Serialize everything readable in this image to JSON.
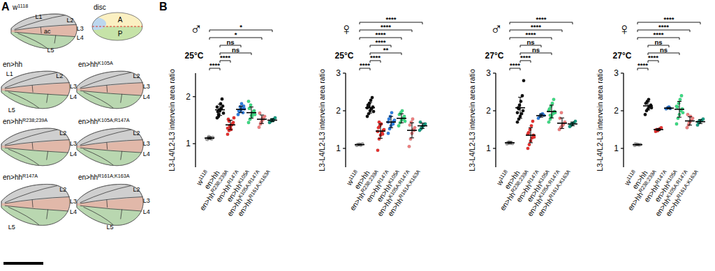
{
  "panel_a": {
    "label": "A",
    "disc": {
      "label": "disc",
      "regions": [
        "A",
        "P"
      ]
    },
    "wings": [
      {
        "label": "w1118",
        "sup": "1118",
        "veins": [
          "L1",
          "L2",
          "ac",
          "L3",
          "L4",
          "L5"
        ]
      },
      {
        "label": "en>hh",
        "sup": null,
        "veins": [
          "L1",
          "L2",
          "L3",
          "L4",
          "L5"
        ]
      },
      {
        "label": "en>hhK105A",
        "sup": "K105A",
        "veins": [
          "L2",
          "L3",
          "L4"
        ]
      },
      {
        "label": "en>hhR238;239A",
        "sup": "R238;239A",
        "veins": [
          "L2",
          "L3",
          "L4"
        ]
      },
      {
        "label": "en>hhK105A;R147A",
        "sup": "K105A;R147A",
        "veins": [
          "L2",
          "L3",
          "L4"
        ]
      },
      {
        "label": "en>hhR147A",
        "sup": "R147A",
        "veins": [
          "L2",
          "L3",
          "L4",
          "L5"
        ]
      },
      {
        "label": "en>hhR161A;K163A",
        "sup": "R161A;K163A",
        "veins": [
          "L2",
          "L3",
          "L4",
          "L5"
        ]
      }
    ]
  },
  "panel_b": {
    "label": "B"
  },
  "chart_data": [
    {
      "type": "dot",
      "title": "♂",
      "subtitle": "25°C",
      "y_label": "L3-L4/L2-L3 intervein area ratio",
      "categories": [
        "w1118",
        "en>hh",
        "en>hhR238;239A",
        "en>hhR147A",
        "en>hhK105A",
        "en>hhK105A;R147A",
        "en>hhR161A;K163A"
      ],
      "superscripts": [
        "1118",
        null,
        "R238;239A",
        "R147A",
        "K105A",
        "K105A;R147A",
        "R161A;K163A"
      ],
      "colors": [
        "#a6a6a6",
        "#111111",
        "#e8312f",
        "#2f7fe0",
        "#3ddc84",
        "#f08080",
        "#1a9e84"
      ],
      "values": [
        [
          1.1,
          1.12,
          1.14,
          1.11,
          1.13,
          1.09,
          1.15,
          1.12,
          1.1,
          1.13
        ],
        [
          1.55,
          1.62,
          1.7,
          1.75,
          1.8,
          1.68,
          1.72,
          1.85,
          1.95,
          1.65,
          1.78,
          1.58
        ],
        [
          1.2,
          1.28,
          1.35,
          1.4,
          1.45,
          1.52,
          1.38,
          1.3,
          1.42,
          1.55,
          1.33,
          1.48
        ],
        [
          1.62,
          1.68,
          1.72,
          1.75,
          1.8,
          1.7,
          1.78,
          1.85,
          1.66,
          1.74
        ],
        [
          1.45,
          1.52,
          1.6,
          1.65,
          1.7,
          1.75,
          1.82,
          1.58,
          1.68,
          1.62,
          1.9
        ],
        [
          1.35,
          1.42,
          1.48,
          1.52,
          1.58,
          1.65,
          1.45,
          1.55
        ],
        [
          1.45,
          1.48,
          1.5,
          1.52,
          1.55,
          1.47,
          1.51,
          1.49
        ]
      ],
      "mean": [
        1.12,
        1.72,
        1.4,
        1.73,
        1.66,
        1.52,
        1.5
      ],
      "sd": [
        0.02,
        0.12,
        0.1,
        0.07,
        0.12,
        0.09,
        0.03
      ],
      "ylim": [
        0.5,
        2.5
      ],
      "yticks": [
        1,
        2
      ],
      "grid": false,
      "comparisons": [
        {
          "from": 0,
          "to": 1,
          "label": "****"
        },
        {
          "from": 1,
          "to": 2,
          "label": "****"
        },
        {
          "from": 1,
          "to": 4,
          "label": "ns"
        },
        {
          "from": 1,
          "to": 3,
          "label": "ns"
        },
        {
          "from": 0,
          "to": 5,
          "label": "*"
        },
        {
          "from": 0,
          "to": 6,
          "label": "*"
        }
      ]
    },
    {
      "type": "dot",
      "title": "♀",
      "subtitle": "25°C",
      "y_label": "L3-L4/L2-L3 intervein area ratio",
      "categories": [
        "w1118",
        "en>hh",
        "en>hhR238;239A",
        "en>hhR147A",
        "en>hhK105A",
        "en>hhK105A;R147A",
        "en>hhR161A;K163A"
      ],
      "superscripts": [
        "1118",
        null,
        "R238;239A",
        "R147A",
        "K105A",
        "K105A;R147A",
        "R161A;K163A"
      ],
      "colors": [
        "#a6a6a6",
        "#111111",
        "#e8312f",
        "#2f7fe0",
        "#3ddc84",
        "#f08080",
        "#1a9e84"
      ],
      "values": [
        [
          1.08,
          1.1,
          1.11,
          1.09,
          1.12,
          1.1,
          1.11,
          1.09
        ],
        [
          1.85,
          1.92,
          2.0,
          2.05,
          2.1,
          2.15,
          2.2,
          2.28,
          2.35,
          1.98,
          2.08,
          2.12
        ],
        [
          0.95,
          1.25,
          1.35,
          1.42,
          1.48,
          1.55,
          1.6,
          1.65,
          1.38,
          1.5,
          1.45,
          1.7
        ],
        [
          1.4,
          1.52,
          1.6,
          1.68,
          1.72,
          1.78,
          1.85,
          1.95,
          1.65,
          1.75,
          1.7
        ],
        [
          1.6,
          1.68,
          1.75,
          1.8,
          1.85,
          1.9,
          1.95,
          2.0,
          1.78,
          1.72
        ],
        [
          1.05,
          1.25,
          1.4,
          1.5,
          1.55,
          1.62,
          1.7,
          1.78,
          1.48
        ],
        [
          1.48,
          1.52,
          1.58,
          1.62,
          1.65,
          1.7,
          1.55,
          1.6
        ]
      ],
      "mean": [
        1.1,
        2.08,
        1.46,
        1.7,
        1.8,
        1.48,
        1.6
      ],
      "sd": [
        0.01,
        0.14,
        0.19,
        0.15,
        0.12,
        0.2,
        0.07
      ],
      "ylim": [
        0.5,
        3
      ],
      "yticks": [
        1,
        2,
        3
      ],
      "grid": false,
      "comparisons": [
        {
          "from": 0,
          "to": 1,
          "label": "****"
        },
        {
          "from": 1,
          "to": 2,
          "label": "****"
        },
        {
          "from": 1,
          "to": 4,
          "label": "**"
        },
        {
          "from": 1,
          "to": 3,
          "label": "****"
        },
        {
          "from": 0,
          "to": 4,
          "label": "****"
        },
        {
          "from": 0,
          "to": 5,
          "label": "****"
        },
        {
          "from": 0,
          "to": 6,
          "label": "****"
        }
      ]
    },
    {
      "type": "dot",
      "title": "♂",
      "subtitle": "27°C",
      "y_label": "L3-L4/L2-L3 intervein area ratio",
      "categories": [
        "w1118",
        "en>hh",
        "en>hhR238;239A",
        "en>hhR147A",
        "en>hhK105A",
        "en>hhK105A;R147A",
        "en>hhR161A;K163A"
      ],
      "superscripts": [
        "1118",
        null,
        "R238;239A",
        "R147A",
        "K105A",
        "K105A;R147A",
        "R161A;K163A"
      ],
      "colors": [
        "#a6a6a6",
        "#111111",
        "#e8312f",
        "#2f7fe0",
        "#3ddc84",
        "#f08080",
        "#1a9e84"
      ],
      "values": [
        [
          1.12,
          1.14,
          1.15,
          1.16,
          1.13,
          1.15,
          1.17,
          1.14
        ],
        [
          1.7,
          1.78,
          1.85,
          1.92,
          2.0,
          2.08,
          2.15,
          2.25,
          2.4,
          2.8,
          1.95,
          2.05
        ],
        [
          1.0,
          1.1,
          1.2,
          1.28,
          1.35,
          1.42,
          1.5,
          1.6,
          1.72,
          1.3,
          1.38
        ],
        [
          1.8,
          1.85,
          1.9,
          1.92,
          1.88
        ],
        [
          1.7,
          1.78,
          1.85,
          1.92,
          1.98,
          2.05,
          2.12,
          2.2,
          2.3,
          1.95,
          2.0,
          1.88
        ],
        [
          1.5,
          1.55,
          1.6,
          1.65,
          1.7,
          1.8,
          1.95,
          1.62
        ],
        [
          1.58,
          1.62,
          1.65,
          1.68,
          1.72,
          1.6,
          1.66
        ]
      ],
      "mean": [
        1.15,
        2.08,
        1.35,
        1.87,
        1.98,
        1.67,
        1.65
      ],
      "sd": [
        0.02,
        0.28,
        0.2,
        0.04,
        0.17,
        0.14,
        0.05
      ],
      "ylim": [
        0.5,
        3
      ],
      "yticks": [
        1,
        2,
        3
      ],
      "grid": false,
      "comparisons": [
        {
          "from": 0,
          "to": 1,
          "label": "****"
        },
        {
          "from": 1,
          "to": 2,
          "label": "****"
        },
        {
          "from": 1,
          "to": 4,
          "label": "ns"
        },
        {
          "from": 1,
          "to": 3,
          "label": "ns"
        },
        {
          "from": 0,
          "to": 4,
          "label": "****"
        },
        {
          "from": 0,
          "to": 5,
          "label": "****"
        },
        {
          "from": 0,
          "to": 6,
          "label": "****"
        }
      ]
    },
    {
      "type": "dot",
      "title": "♀",
      "subtitle": "27°C",
      "y_label": "L3-L4/L2-L3 intervein area ratio",
      "categories": [
        "w1118",
        "en>hh",
        "en>hhR238;239A",
        "en>hhR147A",
        "en>hhK105A",
        "en>hhK105A;R147A",
        "en>hhR161A;K163A"
      ],
      "superscripts": [
        "1118",
        null,
        "R238;239A",
        "R147A",
        "K105A",
        "K105A;R147A",
        "R161A;K163A"
      ],
      "colors": [
        "#a6a6a6",
        "#111111",
        "#e8312f",
        "#2f7fe0",
        "#3ddc84",
        "#f08080",
        "#1a9e84"
      ],
      "values": [
        [
          1.08,
          1.1,
          1.11,
          1.09,
          1.1,
          1.12,
          1.1
        ],
        [
          1.9,
          2.0,
          2.05,
          2.1,
          2.15,
          2.2,
          2.25,
          2.3,
          2.12,
          2.08
        ],
        [
          1.45,
          1.48,
          1.5,
          1.52,
          1.55,
          1.5,
          1.47
        ],
        [
          2.05,
          2.08,
          2.1,
          2.06
        ],
        [
          1.65,
          1.8,
          1.9,
          2.0,
          2.05,
          2.1,
          2.2,
          2.3,
          2.4,
          1.95,
          2.12
        ],
        [
          1.55,
          1.62,
          1.7,
          1.75,
          1.8,
          1.9,
          1.68,
          1.85
        ],
        [
          1.62,
          1.68,
          1.72,
          1.75,
          1.78,
          1.7,
          1.74
        ]
      ],
      "mean": [
        1.1,
        2.13,
        1.5,
        2.07,
        2.04,
        1.73,
        1.71
      ],
      "sd": [
        0.01,
        0.11,
        0.03,
        0.02,
        0.21,
        0.11,
        0.05
      ],
      "ylim": [
        0.5,
        3
      ],
      "yticks": [
        1,
        2,
        3
      ],
      "grid": false,
      "comparisons": [
        {
          "from": 0,
          "to": 1,
          "label": "****"
        },
        {
          "from": 1,
          "to": 2,
          "label": "****"
        },
        {
          "from": 1,
          "to": 4,
          "label": "ns"
        },
        {
          "from": 1,
          "to": 3,
          "label": "ns"
        },
        {
          "from": 0,
          "to": 4,
          "label": "****"
        },
        {
          "from": 0,
          "to": 5,
          "label": "****"
        },
        {
          "from": 0,
          "to": 6,
          "label": "****"
        }
      ]
    }
  ]
}
